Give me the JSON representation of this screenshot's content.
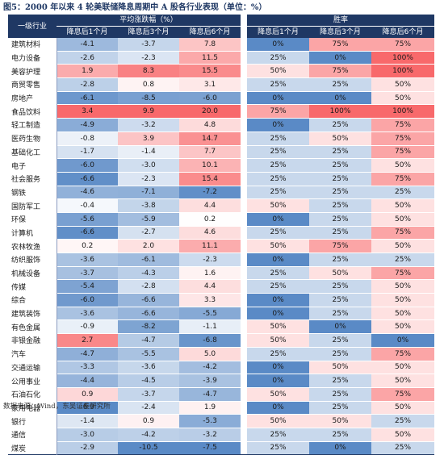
{
  "title": "图5：2000 年以来 4 轮美联储降息周期中 A 股各行业表现（单位：%）",
  "header": {
    "industry_label": "一级行业",
    "group_avg": "平均涨跌幅（%）",
    "group_win": "胜率",
    "col_1m": "降息后1个月",
    "col_3m": "降息后3个月",
    "col_6m": "降息后6个月"
  },
  "colors": {
    "header_bg": "#1f3864",
    "positive_strong": "#f8696b",
    "negative_strong": "#5a8ac6",
    "neutral": "#ffffff"
  },
  "rows": [
    {
      "name": "建筑材料",
      "avg": [
        "-4.1",
        "-3.7",
        "7.8"
      ],
      "win": [
        "0%",
        "75%",
        "75%"
      ]
    },
    {
      "name": "电力设备",
      "avg": [
        "-2.6",
        "-2.3",
        "11.5"
      ],
      "win": [
        "25%",
        "0%",
        "100%"
      ]
    },
    {
      "name": "美容护理",
      "avg": [
        "1.9",
        "8.3",
        "15.5"
      ],
      "win": [
        "50%",
        "75%",
        "100%"
      ]
    },
    {
      "name": "商贸零售",
      "avg": [
        "-2.8",
        "0.8",
        "3.1"
      ],
      "win": [
        "25%",
        "25%",
        "50%"
      ]
    },
    {
      "name": "房地产",
      "avg": [
        "-6.1",
        "-8.5",
        "-6.0"
      ],
      "win": [
        "0%",
        "0%",
        "50%"
      ]
    },
    {
      "name": "食品饮料",
      "avg": [
        "3.4",
        "9.9",
        "20.0"
      ],
      "win": [
        "75%",
        "100%",
        "100%"
      ]
    },
    {
      "name": "轻工制造",
      "avg": [
        "-4.9",
        "-3.2",
        "4.8"
      ],
      "win": [
        "0%",
        "25%",
        "75%"
      ]
    },
    {
      "name": "医药生物",
      "avg": [
        "-0.8",
        "3.9",
        "14.7"
      ],
      "win": [
        "25%",
        "50%",
        "75%"
      ]
    },
    {
      "name": "基础化工",
      "avg": [
        "-1.7",
        "-1.4",
        "7.7"
      ],
      "win": [
        "25%",
        "25%",
        "75%"
      ]
    },
    {
      "name": "电子",
      "avg": [
        "-6.0",
        "-3.0",
        "10.1"
      ],
      "win": [
        "25%",
        "25%",
        "50%"
      ]
    },
    {
      "name": "社会服务",
      "avg": [
        "-6.6",
        "-2.3",
        "15.4"
      ],
      "win": [
        "25%",
        "25%",
        "75%"
      ]
    },
    {
      "name": "钢铁",
      "avg": [
        "-4.6",
        "-7.1",
        "-7.2"
      ],
      "win": [
        "25%",
        "25%",
        "25%"
      ]
    },
    {
      "name": "国防军工",
      "avg": [
        "-0.4",
        "-3.8",
        "4.4"
      ],
      "win": [
        "50%",
        "25%",
        "50%"
      ]
    },
    {
      "name": "环保",
      "avg": [
        "-5.6",
        "-5.9",
        "0.2"
      ],
      "win": [
        "0%",
        "25%",
        "50%"
      ]
    },
    {
      "name": "计算机",
      "avg": [
        "-6.6",
        "-2.7",
        "4.6"
      ],
      "win": [
        "25%",
        "25%",
        "75%"
      ]
    },
    {
      "name": "农林牧渔",
      "avg": [
        "0.2",
        "2.0",
        "11.1"
      ],
      "win": [
        "50%",
        "75%",
        "50%"
      ]
    },
    {
      "name": "纺织服饰",
      "avg": [
        "-3.6",
        "-6.1",
        "-2.3"
      ],
      "win": [
        "0%",
        "25%",
        "25%"
      ]
    },
    {
      "name": "机械设备",
      "avg": [
        "-3.7",
        "-4.3",
        "1.6"
      ],
      "win": [
        "25%",
        "50%",
        "75%"
      ]
    },
    {
      "name": "传媒",
      "avg": [
        "-5.4",
        "-2.8",
        "4.4"
      ],
      "win": [
        "25%",
        "25%",
        "50%"
      ]
    },
    {
      "name": "综合",
      "avg": [
        "-6.0",
        "-6.6",
        "3.3"
      ],
      "win": [
        "0%",
        "25%",
        "50%"
      ]
    },
    {
      "name": "建筑装饰",
      "avg": [
        "-3.6",
        "-6.6",
        "-5.5"
      ],
      "win": [
        "0%",
        "25%",
        "50%"
      ]
    },
    {
      "name": "有色金属",
      "avg": [
        "-0.9",
        "-8.2",
        "-1.1"
      ],
      "win": [
        "50%",
        "0%",
        "50%"
      ]
    },
    {
      "name": "非银金融",
      "avg": [
        "2.7",
        "-4.7",
        "-6.8"
      ],
      "win": [
        "50%",
        "25%",
        "0%"
      ]
    },
    {
      "name": "汽车",
      "avg": [
        "-4.7",
        "-5.5",
        "5.0"
      ],
      "win": [
        "25%",
        "25%",
        "75%"
      ]
    },
    {
      "name": "交通运输",
      "avg": [
        "-3.3",
        "-3.6",
        "-4.2"
      ],
      "win": [
        "0%",
        "50%",
        "50%"
      ]
    },
    {
      "name": "公用事业",
      "avg": [
        "-4.4",
        "-4.5",
        "-3.9"
      ],
      "win": [
        "0%",
        "25%",
        "50%"
      ]
    },
    {
      "name": "石油石化",
      "avg": [
        "0.9",
        "-3.7",
        "-4.7"
      ],
      "win": [
        "50%",
        "25%",
        "75%"
      ]
    },
    {
      "name": "家用电器",
      "avg": [
        "-6.9",
        "-2.4",
        "1.9"
      ],
      "win": [
        "0%",
        "25%",
        "50%"
      ]
    },
    {
      "name": "银行",
      "avg": [
        "-1.4",
        "0.9",
        "-5.3"
      ],
      "win": [
        "50%",
        "50%",
        "25%"
      ]
    },
    {
      "name": "通信",
      "avg": [
        "-3.0",
        "-4.2",
        "-3.2"
      ],
      "win": [
        "25%",
        "25%",
        "50%"
      ]
    },
    {
      "name": "煤炭",
      "avg": [
        "-2.9",
        "-10.5",
        "-7.5"
      ],
      "win": [
        "25%",
        "0%",
        "25%"
      ]
    }
  ],
  "source": "数据来源：Wind，东吴证券研究所"
}
